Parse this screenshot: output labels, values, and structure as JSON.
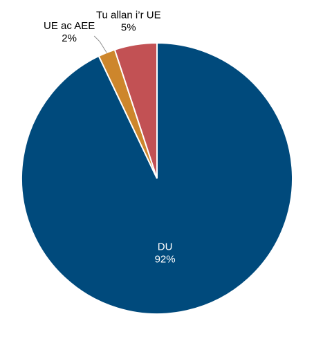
{
  "chart_data": {
    "type": "pie",
    "title": "",
    "start_angle_deg": 0,
    "direction": "clockwise",
    "slices": [
      {
        "label": "DU",
        "value": 92,
        "value_label": "92%",
        "color": "#004a7c",
        "label_color": "#ffffff",
        "label_placement": "inside"
      },
      {
        "label": "UE ac AEE",
        "value": 2,
        "value_label": "2%",
        "color": "#cd862c",
        "label_color": "#000000",
        "label_placement": "outside-leader"
      },
      {
        "label": "Tu allan i’r UE",
        "value": 5,
        "value_label": "5%",
        "color": "#c25154",
        "label_color": "#000000",
        "label_placement": "outside"
      }
    ]
  }
}
